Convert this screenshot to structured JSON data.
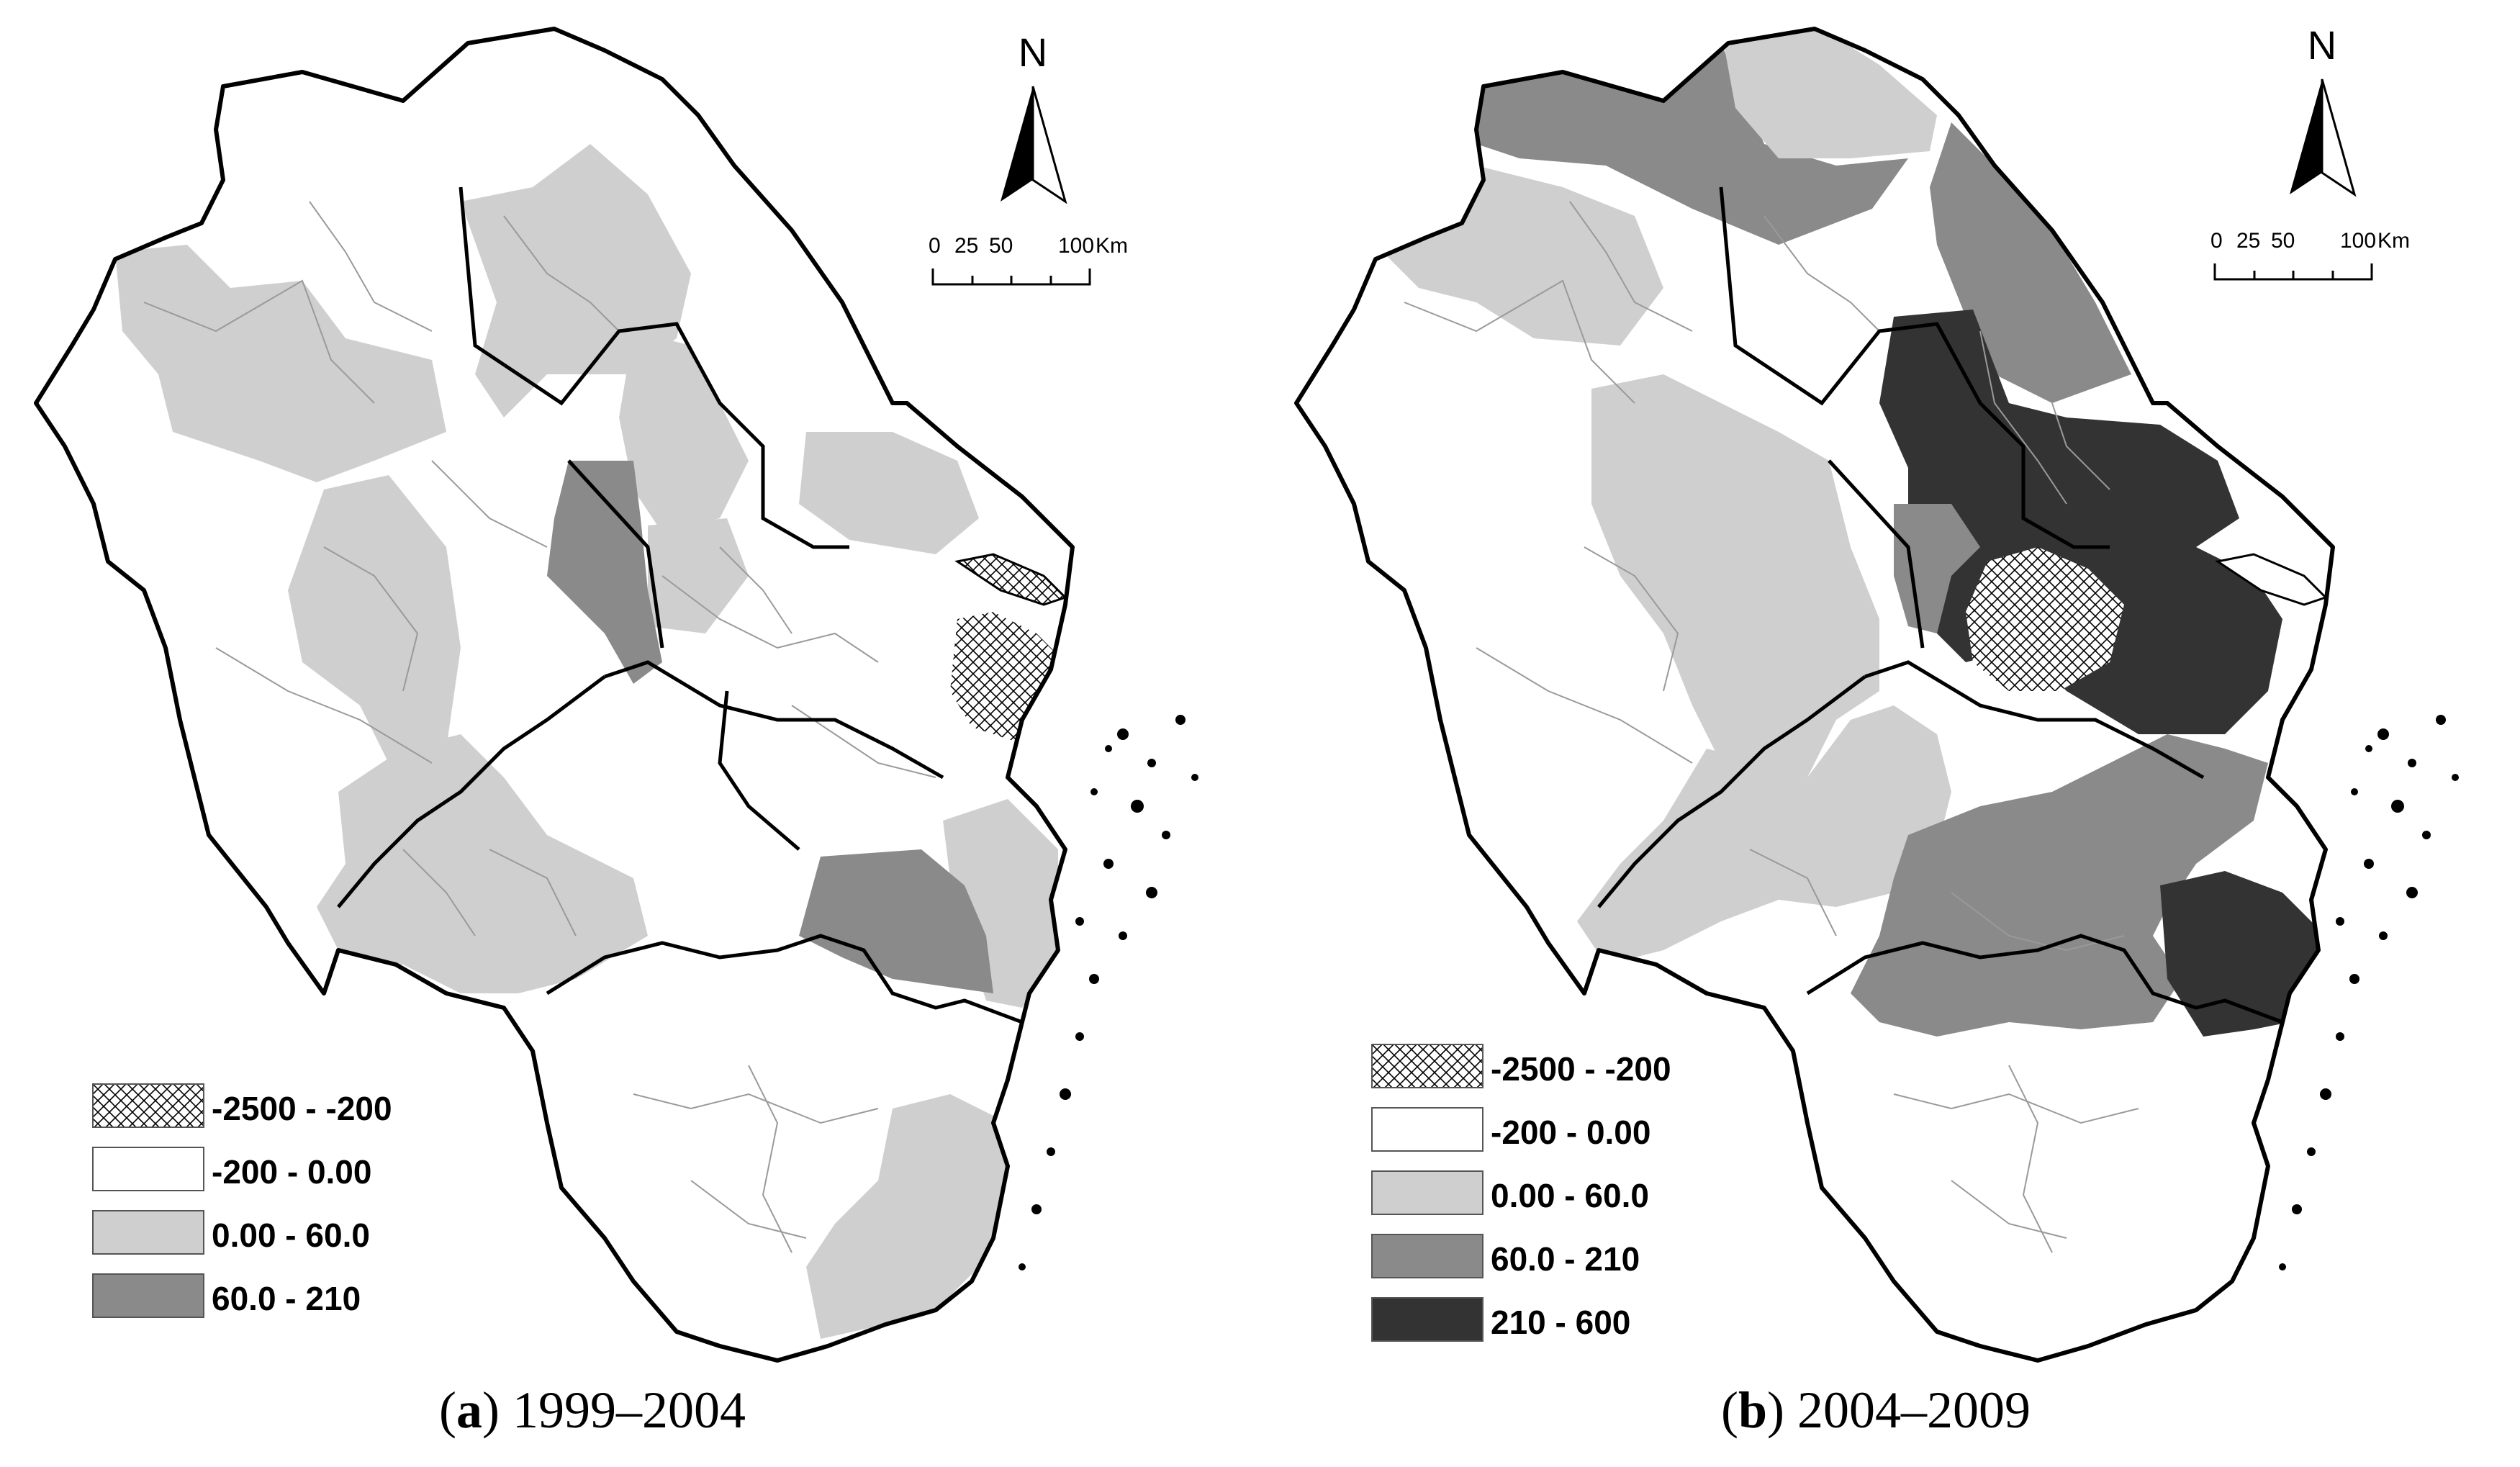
{
  "panels": [
    {
      "id": "a",
      "caption_letter": "a",
      "caption_period": "1999–2004",
      "north_label": "N",
      "scale": {
        "ticks": [
          "0",
          "25",
          "50",
          "100"
        ],
        "unit": "Km"
      },
      "legend": [
        {
          "label": "-2500 - -200",
          "fill": "hatch"
        },
        {
          "label": "-200 - 0.00",
          "fill": "#ffffff"
        },
        {
          "label": "0.00 - 60.0",
          "fill": "#cfcfcf"
        },
        {
          "label": "60.0 - 210",
          "fill": "#8a8a8a"
        }
      ]
    },
    {
      "id": "b",
      "caption_letter": "b",
      "caption_period": "2004–2009",
      "north_label": "N",
      "scale": {
        "ticks": [
          "0",
          "25",
          "50",
          "100"
        ],
        "unit": "Km"
      },
      "legend": [
        {
          "label": "-2500 - -200",
          "fill": "hatch"
        },
        {
          "label": "-200 - 0.00",
          "fill": "#ffffff"
        },
        {
          "label": "0.00 - 60.0",
          "fill": "#cfcfcf"
        },
        {
          "label": "60.0 - 210",
          "fill": "#8a8a8a"
        },
        {
          "label": "210 - 600",
          "fill": "#333333"
        }
      ]
    }
  ],
  "colors": {
    "border": "#000000",
    "inner_border": "#9a9a9a",
    "light": "#cfcfcf",
    "medium": "#8a8a8a",
    "dark": "#333333"
  }
}
